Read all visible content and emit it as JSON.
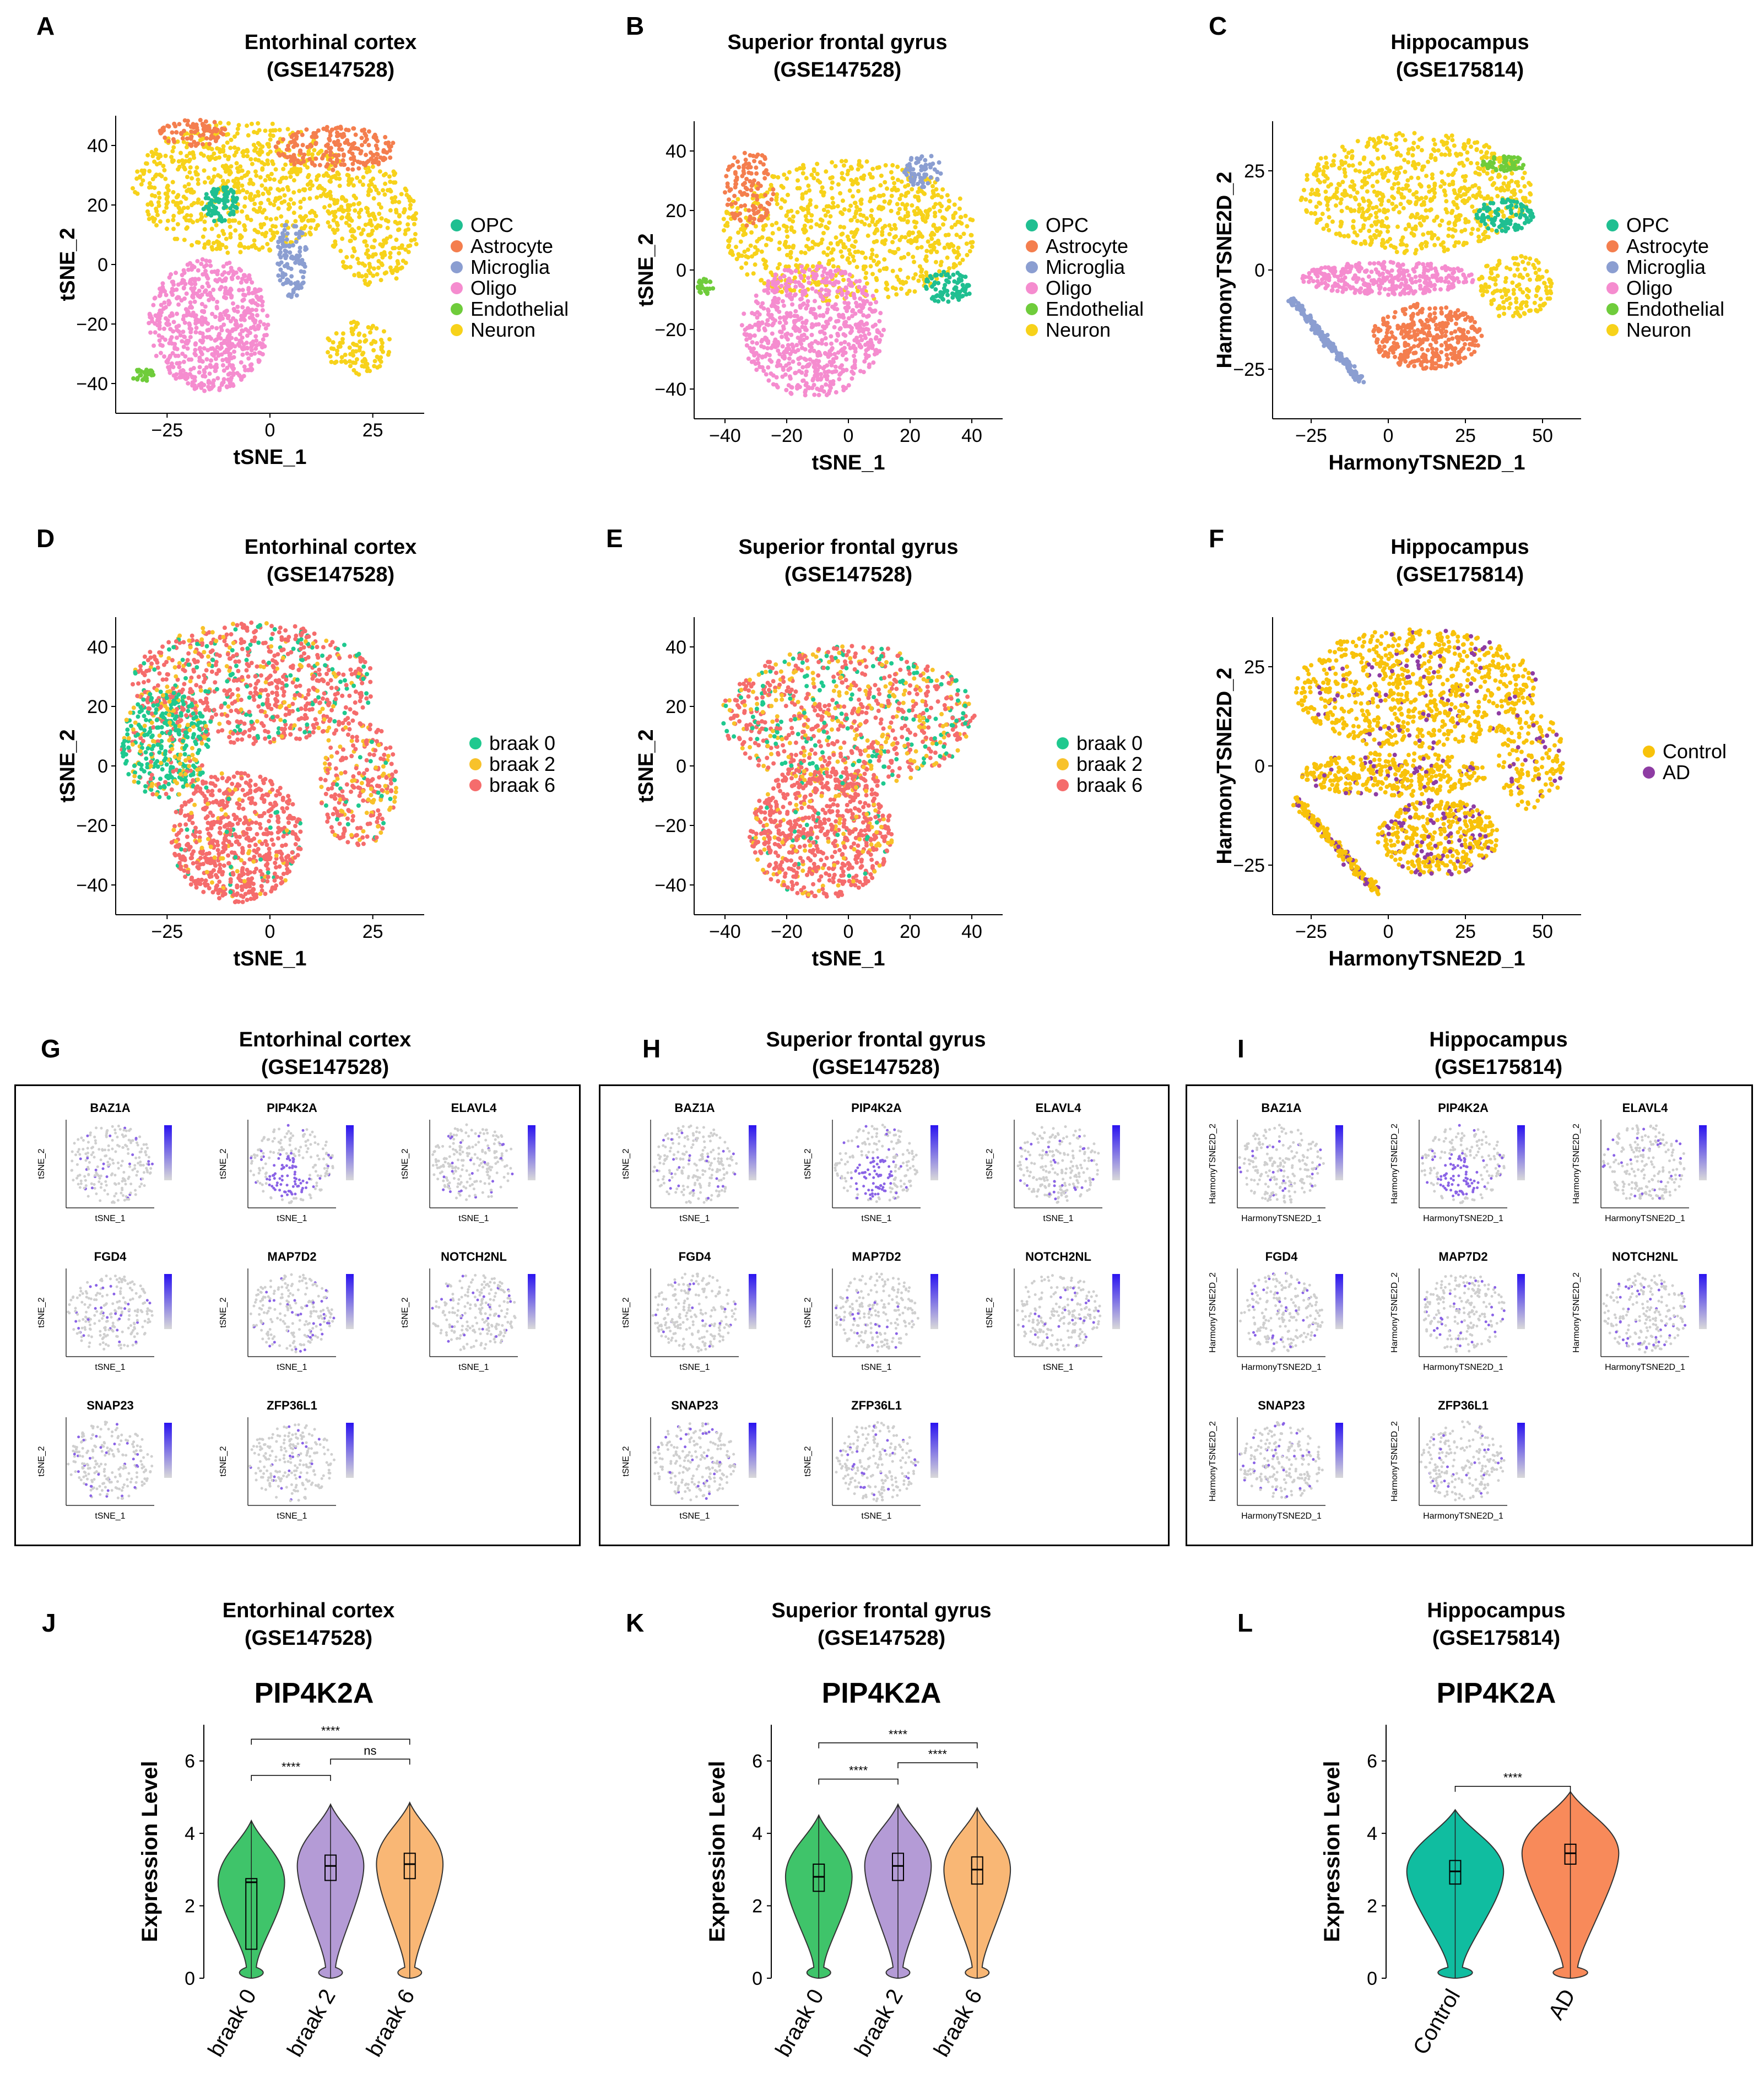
{
  "celltype_colors": {
    "OPC": "#1fbf91",
    "Astrocyte": "#f47e4e",
    "Microglia": "#8b9ed1",
    "Oligo": "#f58ccf",
    "Endothelial": "#6fcc3b",
    "Neuron": "#f7d21a"
  },
  "celltypes": [
    "OPC",
    "Astrocyte",
    "Microglia",
    "Oligo",
    "Endothelial",
    "Neuron"
  ],
  "braak_labels": [
    "braak 0",
    "braak 2",
    "braak 6"
  ],
  "braak_colors": [
    "#1fc98f",
    "#f8c22a",
    "#f56c6c"
  ],
  "cond_labels": [
    "Control",
    "AD"
  ],
  "cond_colors": [
    "#f8c20a",
    "#8e3ca3"
  ],
  "panels_top": [
    {
      "letter": "A",
      "title1": "Entorhinal cortex",
      "title2": "(GSE147528)",
      "xlabel": "tSNE_1",
      "ylabel": "tSNE_2",
      "xticks": [
        "−25",
        "0",
        "25"
      ],
      "yticks": [
        "40",
        "20",
        "0",
        "−20",
        "−40"
      ]
    },
    {
      "letter": "B",
      "title1": "Superior frontal gyrus",
      "title2": "(GSE147528)",
      "xlabel": "tSNE_1",
      "ylabel": "tSNE_2",
      "xticks": [
        "−40",
        "−20",
        "0",
        "20",
        "40"
      ],
      "yticks": [
        "40",
        "20",
        "0",
        "−20",
        "−40"
      ]
    },
    {
      "letter": "C",
      "title1": "Hippocampus",
      "title2": "(GSE175814)",
      "xlabel": "HarmonyTSNE2D_1",
      "ylabel": "HarmonyTSNE2D_2",
      "xticks": [
        "−25",
        "0",
        "25",
        "50"
      ],
      "yticks": [
        "25",
        "0",
        "−25"
      ]
    }
  ],
  "panels_mid": [
    {
      "letter": "D",
      "title1": "Entorhinal cortex",
      "title2": "(GSE147528)",
      "xlabel": "tSNE_1",
      "ylabel": "tSNE_2",
      "xticks": [
        "−25",
        "0",
        "25"
      ],
      "yticks": [
        "40",
        "20",
        "0",
        "−20",
        "−40"
      ]
    },
    {
      "letter": "E",
      "title1": "Superior frontal gyrus",
      "title2": "(GSE147528)",
      "xlabel": "tSNE_1",
      "ylabel": "tSNE_2",
      "xticks": [
        "−40",
        "−20",
        "0",
        "20",
        "40"
      ],
      "yticks": [
        "40",
        "20",
        "0",
        "−20",
        "−40"
      ]
    },
    {
      "letter": "F",
      "title1": "Hippocampus",
      "title2": "(GSE175814)",
      "xlabel": "HarmonyTSNE2D_1",
      "ylabel": "HarmonyTSNE2D_2",
      "xticks": [
        "−25",
        "0",
        "25",
        "50"
      ],
      "yticks": [
        "25",
        "0",
        "−25"
      ]
    }
  ],
  "panels_feature": [
    {
      "letter": "G",
      "title1": "Entorhinal cortex",
      "title2": "(GSE147528)",
      "xlabel": "tSNE_1",
      "ylabel": "tSNE_2"
    },
    {
      "letter": "H",
      "title1": "Superior frontal gyrus",
      "title2": "(GSE147528)",
      "xlabel": "tSNE_1",
      "ylabel": "tSNE_2"
    },
    {
      "letter": "I",
      "title1": "Hippocampus",
      "title2": "(GSE175814)",
      "xlabel": "HarmonyTSNE2D_1",
      "ylabel": "HarmonyTSNE2D_2"
    }
  ],
  "genes": [
    "BAZ1A",
    "PIP4K2A",
    "ELAVL4",
    "FGD4",
    "MAP7D2",
    "NOTCH2NL",
    "SNAP23",
    "ZFP36L1"
  ],
  "panels_violin": [
    {
      "letter": "J",
      "title1": "Entorhinal cortex",
      "title2": "(GSE147528)"
    },
    {
      "letter": "K",
      "title1": "Superior frontal gyrus",
      "title2": "(GSE147528)"
    },
    {
      "letter": "L",
      "title1": "Hippocampus",
      "title2": "(GSE175814)"
    }
  ],
  "chart_data": [
    {
      "type": "violin",
      "id": "J",
      "title": "PIP4K2A",
      "ylabel": "Expression Level",
      "ylim": [
        0,
        7
      ],
      "yticks": [
        0,
        2,
        4,
        6
      ],
      "categories": [
        "braak 0",
        "braak 2",
        "braak 6"
      ],
      "medians": [
        2.65,
        3.1,
        3.15
      ],
      "q1": [
        0.8,
        2.7,
        2.75
      ],
      "q3": [
        2.75,
        3.4,
        3.45
      ],
      "colors": [
        "#3fc46a",
        "#b49bd6",
        "#f9b775"
      ],
      "comparisons": [
        {
          "a": 0,
          "b": 2,
          "label": "****",
          "y": 6.6
        },
        {
          "a": 0,
          "b": 1,
          "label": "****",
          "y": 5.6
        },
        {
          "a": 1,
          "b": 2,
          "label": "ns",
          "y": 6.05
        }
      ]
    },
    {
      "type": "violin",
      "id": "K",
      "title": "PIP4K2A",
      "ylabel": "Expression Level",
      "ylim": [
        0,
        7
      ],
      "yticks": [
        0,
        2,
        4,
        6
      ],
      "categories": [
        "braak 0",
        "braak 2",
        "braak 6"
      ],
      "medians": [
        2.8,
        3.1,
        3.0
      ],
      "q1": [
        2.4,
        2.7,
        2.6
      ],
      "q3": [
        3.15,
        3.45,
        3.35
      ],
      "colors": [
        "#3fc46a",
        "#b49bd6",
        "#f9b775"
      ],
      "comparisons": [
        {
          "a": 0,
          "b": 2,
          "label": "****",
          "y": 6.5
        },
        {
          "a": 0,
          "b": 1,
          "label": "****",
          "y": 5.5
        },
        {
          "a": 1,
          "b": 2,
          "label": "****",
          "y": 5.95
        }
      ]
    },
    {
      "type": "violin",
      "id": "L",
      "title": "PIP4K2A",
      "ylabel": "Expression Level",
      "ylim": [
        0,
        7
      ],
      "yticks": [
        0,
        2,
        4,
        6
      ],
      "categories": [
        "Control",
        "AD"
      ],
      "medians": [
        2.95,
        3.45
      ],
      "q1": [
        2.6,
        3.15
      ],
      "q3": [
        3.25,
        3.7
      ],
      "colors": [
        "#10bda0",
        "#f88a5a"
      ],
      "comparisons": [
        {
          "a": 0,
          "b": 1,
          "label": "****",
          "y": 5.3
        }
      ]
    }
  ]
}
